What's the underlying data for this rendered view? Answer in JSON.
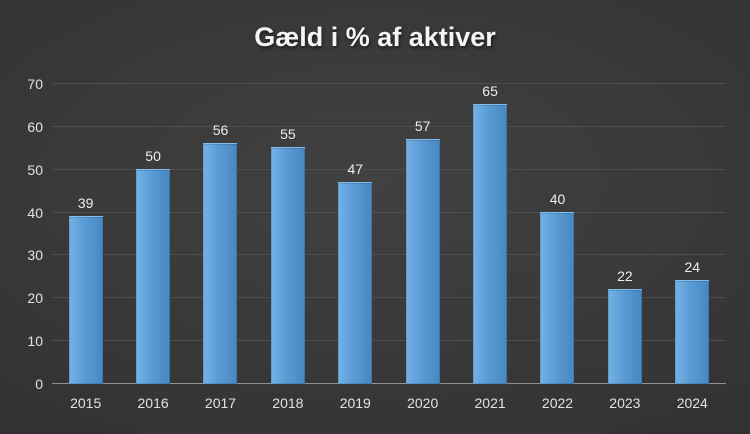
{
  "chart_data": {
    "type": "bar",
    "title": "Gæld i % af aktiver",
    "categories": [
      "2015",
      "2016",
      "2017",
      "2018",
      "2019",
      "2020",
      "2021",
      "2022",
      "2023",
      "2024"
    ],
    "values": [
      39,
      50,
      56,
      55,
      47,
      57,
      65,
      40,
      22,
      24
    ],
    "xlabel": "",
    "ylabel": "",
    "ylim": [
      0,
      70
    ],
    "y_ticks": [
      0,
      10,
      20,
      30,
      40,
      50,
      60,
      70
    ],
    "grid": true,
    "legend": false,
    "data_labels": true,
    "colors": {
      "bar": "#5b9bd5",
      "background": "#343434",
      "gridline": "#4e4e4e",
      "axis_line": "#909090",
      "text": "#e2e2e2",
      "title_text": "#f5f5f5"
    }
  }
}
